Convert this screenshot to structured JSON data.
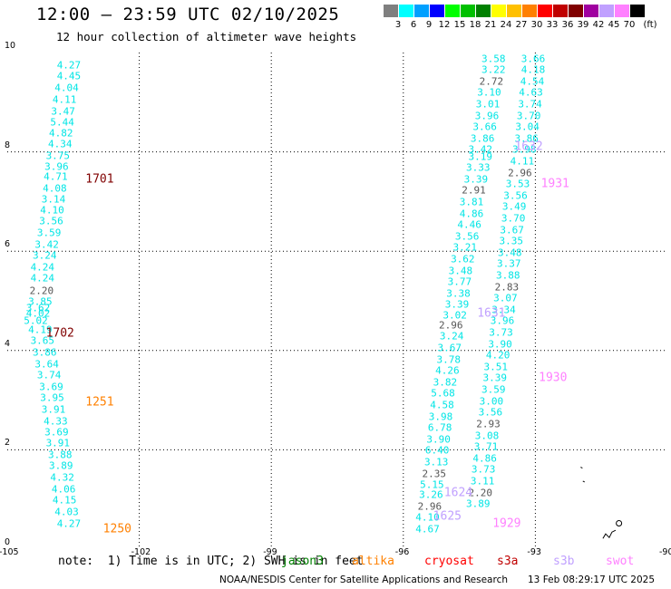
{
  "header": {
    "title": "12:00 — 23:59 UTC 02/10/2025",
    "subtitle": "12 hour collection of altimeter wave heights"
  },
  "colorbar": {
    "unit": "(ft)",
    "segments": [
      {
        "color": "#7f7f7f",
        "label": "3"
      },
      {
        "color": "#00ffff",
        "label": "6"
      },
      {
        "color": "#00a0ff",
        "label": "9"
      },
      {
        "color": "#0000ff",
        "label": "12"
      },
      {
        "color": "#00ff00",
        "label": "15"
      },
      {
        "color": "#00c000",
        "label": "18"
      },
      {
        "color": "#008000",
        "label": "21"
      },
      {
        "color": "#ffff00",
        "label": "24"
      },
      {
        "color": "#ffc000",
        "label": "27"
      },
      {
        "color": "#ff8000",
        "label": "30"
      },
      {
        "color": "#ff0000",
        "label": "33"
      },
      {
        "color": "#c00000",
        "label": "36"
      },
      {
        "color": "#800000",
        "label": "39"
      },
      {
        "color": "#a000a0",
        "label": "42"
      },
      {
        "color": "#c0a0ff",
        "label": "45"
      },
      {
        "color": "#ff80ff",
        "label": "70"
      },
      {
        "color": "#000000",
        "label": ""
      }
    ]
  },
  "map": {
    "lon_range": [
      -105,
      -90
    ],
    "lat_range": [
      0,
      10
    ],
    "lon_ticks": [
      "-105",
      "-102",
      "-99",
      "-96",
      "-93",
      "-90"
    ],
    "lat_ticks": [
      "0",
      "2",
      "4",
      "6",
      "8",
      "10"
    ],
    "tracks": [
      {
        "name": "track-a",
        "color": "#00e5e5",
        "points": [
          [
            -103.6,
            9.75,
            "4.27"
          ],
          [
            -103.6,
            9.52,
            "4.45"
          ],
          [
            -103.65,
            9.28,
            "4.04"
          ],
          [
            -103.7,
            9.05,
            "4.11"
          ],
          [
            -103.73,
            8.82,
            "3.47"
          ],
          [
            -103.75,
            8.6,
            "5.44"
          ],
          [
            -103.78,
            8.37,
            "4.82"
          ],
          [
            -103.8,
            8.15,
            "4.34"
          ],
          [
            -103.85,
            7.92,
            "3.75"
          ],
          [
            -103.88,
            7.7,
            "3.96"
          ],
          [
            -103.9,
            7.5,
            "4.71"
          ],
          [
            -103.92,
            7.27,
            "4.08"
          ],
          [
            -103.95,
            7.05,
            "3.14"
          ],
          [
            -103.98,
            6.82,
            "4.10"
          ],
          [
            -104.0,
            6.6,
            "3.56"
          ],
          [
            -104.05,
            6.37,
            "3.59"
          ],
          [
            -104.1,
            6.14,
            "3.42"
          ],
          [
            -104.15,
            5.91,
            "3.24"
          ],
          [
            -104.2,
            5.68,
            "4.24"
          ],
          [
            -104.2,
            5.45,
            "4.24"
          ],
          [
            -104.22,
            5.2,
            "2.20"
          ],
          [
            -104.25,
            4.98,
            "3.85"
          ],
          [
            -104.3,
            4.86,
            "3.62"
          ],
          [
            -104.3,
            4.74,
            "4.02"
          ],
          [
            -104.35,
            4.6,
            "5.02"
          ],
          [
            -104.25,
            4.42,
            "4.19"
          ],
          [
            -104.2,
            4.19,
            "3.65"
          ],
          [
            -104.15,
            3.96,
            "3.86"
          ],
          [
            -104.1,
            3.73,
            "3.64"
          ],
          [
            -104.05,
            3.5,
            "3.74"
          ],
          [
            -104.0,
            3.27,
            "3.69"
          ],
          [
            -103.98,
            3.04,
            "3.95"
          ],
          [
            -103.95,
            2.81,
            "3.91"
          ],
          [
            -103.9,
            2.58,
            "4.33"
          ],
          [
            -103.88,
            2.36,
            "3.69"
          ],
          [
            -103.85,
            2.13,
            "3.91"
          ],
          [
            -103.8,
            1.9,
            "3.88"
          ],
          [
            -103.78,
            1.67,
            "3.89"
          ],
          [
            -103.75,
            1.44,
            "4.32"
          ],
          [
            -103.72,
            1.21,
            "4.06"
          ],
          [
            -103.7,
            0.98,
            "4.15"
          ],
          [
            -103.65,
            0.75,
            "4.03"
          ],
          [
            -103.6,
            0.52,
            "4.27"
          ]
        ]
      },
      {
        "name": "track-b",
        "color": "#00e5e5",
        "points": [
          [
            -93.95,
            9.88,
            "3.58"
          ],
          [
            -93.95,
            9.65,
            "3.22"
          ],
          [
            -94.0,
            9.42,
            "2.72"
          ],
          [
            -94.05,
            9.19,
            "3.10"
          ],
          [
            -94.08,
            8.96,
            "3.01"
          ],
          [
            -94.1,
            8.73,
            "3.96"
          ],
          [
            -94.15,
            8.5,
            "3.66"
          ],
          [
            -94.2,
            8.27,
            "3.86"
          ],
          [
            -94.25,
            8.04,
            "3.42"
          ],
          [
            -94.25,
            7.9,
            "3.19"
          ],
          [
            -94.3,
            7.68,
            "3.33"
          ],
          [
            -94.35,
            7.45,
            "3.39"
          ],
          [
            -94.4,
            7.22,
            "2.91"
          ],
          [
            -94.45,
            6.99,
            "3.81"
          ],
          [
            -94.45,
            6.76,
            "4.86"
          ],
          [
            -94.5,
            6.53,
            "4.46"
          ],
          [
            -94.55,
            6.3,
            "3.56"
          ],
          [
            -94.6,
            6.07,
            "3.21"
          ],
          [
            -94.65,
            5.84,
            "3.62"
          ],
          [
            -94.7,
            5.61,
            "3.48"
          ],
          [
            -94.72,
            5.38,
            "3.77"
          ],
          [
            -94.75,
            5.15,
            "3.38"
          ],
          [
            -94.78,
            4.92,
            "3.39"
          ],
          [
            -94.83,
            4.7,
            "3.02"
          ],
          [
            -94.92,
            4.5,
            "2.96"
          ],
          [
            -94.9,
            4.28,
            "3.24"
          ],
          [
            -94.95,
            4.05,
            "3.67"
          ],
          [
            -94.97,
            3.82,
            "3.78"
          ],
          [
            -95.0,
            3.59,
            "4.26"
          ],
          [
            -95.05,
            3.36,
            "3.82"
          ],
          [
            -95.1,
            3.13,
            "5.68"
          ],
          [
            -95.12,
            2.9,
            "4.58"
          ],
          [
            -95.15,
            2.67,
            "3.98"
          ],
          [
            -95.17,
            2.44,
            "6.78"
          ],
          [
            -95.2,
            2.21,
            "3.90"
          ],
          [
            -95.23,
            1.98,
            "6.40"
          ],
          [
            -95.25,
            1.75,
            "3.13"
          ],
          [
            -95.3,
            1.52,
            "2.35"
          ],
          [
            -95.35,
            1.29,
            "5.15"
          ],
          [
            -95.37,
            1.09,
            "3.26"
          ],
          [
            -95.4,
            0.86,
            "2.96"
          ],
          [
            -95.45,
            0.63,
            "4.10"
          ],
          [
            -95.45,
            0.4,
            "4.67"
          ]
        ]
      },
      {
        "name": "track-c",
        "color": "#00e5e5",
        "points": [
          [
            -93.05,
            9.88,
            "3.66"
          ],
          [
            -93.05,
            9.65,
            "4.18"
          ],
          [
            -93.07,
            9.42,
            "4.54"
          ],
          [
            -93.1,
            9.19,
            "4.63"
          ],
          [
            -93.12,
            8.96,
            "3.74"
          ],
          [
            -93.15,
            8.73,
            "3.70"
          ],
          [
            -93.18,
            8.5,
            "3.04"
          ],
          [
            -93.2,
            8.27,
            "3.86"
          ],
          [
            -93.25,
            8.04,
            "3.98"
          ],
          [
            -93.3,
            7.81,
            "4.11"
          ],
          [
            -93.35,
            7.58,
            "2.96"
          ],
          [
            -93.4,
            7.35,
            "3.53"
          ],
          [
            -93.45,
            7.12,
            "3.56"
          ],
          [
            -93.48,
            6.89,
            "3.49"
          ],
          [
            -93.5,
            6.66,
            "3.70"
          ],
          [
            -93.53,
            6.43,
            "3.67"
          ],
          [
            -93.55,
            6.2,
            "3.35"
          ],
          [
            -93.58,
            5.97,
            "3.48"
          ],
          [
            -93.6,
            5.74,
            "3.37"
          ],
          [
            -93.62,
            5.51,
            "3.88"
          ],
          [
            -93.65,
            5.28,
            "2.83"
          ],
          [
            -93.68,
            5.05,
            "3.07"
          ],
          [
            -93.72,
            4.82,
            "3.34"
          ],
          [
            -93.75,
            4.59,
            "3.96"
          ],
          [
            -93.78,
            4.36,
            "3.73"
          ],
          [
            -93.8,
            4.13,
            "3.90"
          ],
          [
            -93.85,
            3.9,
            "4.20"
          ],
          [
            -93.9,
            3.67,
            "3.51"
          ],
          [
            -93.92,
            3.44,
            "3.39"
          ],
          [
            -93.95,
            3.21,
            "3.59"
          ],
          [
            -94.0,
            2.98,
            "3.00"
          ],
          [
            -94.02,
            2.75,
            "3.56"
          ],
          [
            -94.07,
            2.52,
            "2.93"
          ],
          [
            -94.1,
            2.29,
            "3.08"
          ],
          [
            -94.12,
            2.06,
            "3.71"
          ],
          [
            -94.15,
            1.83,
            "4.86"
          ],
          [
            -94.18,
            1.6,
            "3.73"
          ],
          [
            -94.2,
            1.37,
            "3.11"
          ],
          [
            -94.25,
            1.14,
            "2.20"
          ],
          [
            -94.3,
            0.91,
            "3.89"
          ]
        ]
      }
    ],
    "time_labels": [
      {
        "text": "1701",
        "lon": -102.9,
        "lat": 7.45,
        "color": "#800000"
      },
      {
        "text": "1702",
        "lon": -103.8,
        "lat": 4.35,
        "color": "#800000"
      },
      {
        "text": "1251",
        "lon": -102.9,
        "lat": 2.95,
        "color": "#ff8000"
      },
      {
        "text": "1250",
        "lon": -102.5,
        "lat": 0.4,
        "color": "#ff8000"
      },
      {
        "text": "1931",
        "lon": -92.55,
        "lat": 7.35,
        "color": "#ff80ff"
      },
      {
        "text": "1930",
        "lon": -92.6,
        "lat": 3.44,
        "color": "#ff80ff"
      },
      {
        "text": "1929",
        "lon": -93.65,
        "lat": 0.52,
        "color": "#ff80ff"
      },
      {
        "text": "1632",
        "lon": -93.15,
        "lat": 8.1,
        "color": "#c0a0ff"
      },
      {
        "text": "1631",
        "lon": -94.0,
        "lat": 4.74,
        "color": "#c0a0ff"
      },
      {
        "text": "1624",
        "lon": -94.75,
        "lat": 1.14,
        "color": "#c0a0ff"
      },
      {
        "text": "1625",
        "lon": -95.0,
        "lat": 0.65,
        "color": "#c0a0ff"
      }
    ],
    "islands": [
      {
        "name": "island-fragment",
        "lon": -91.95,
        "lat": 1.65
      },
      {
        "name": "island-fragment",
        "lon": -91.9,
        "lat": 1.37
      },
      {
        "name": "island-fragment",
        "lon": -91.1,
        "lat": 0.52
      },
      {
        "name": "island-fragment",
        "lon": -91.3,
        "lat": 0.27
      }
    ]
  },
  "footer": {
    "note": "note:  1) Time is in UTC; 2) SWH is in feet",
    "legend": [
      {
        "label": "jason3",
        "color": "#008000"
      },
      {
        "label": "altika",
        "color": "#ff8000"
      },
      {
        "label": "cryosat",
        "color": "#ff0000"
      },
      {
        "label": "s3a",
        "color": "#c00000"
      },
      {
        "label": "s3b",
        "color": "#c0a0ff"
      },
      {
        "label": "swot",
        "color": "#ff80ff"
      }
    ],
    "credit": "NOAA/NESDIS Center for Satellite Applications and Research",
    "timestamp": "13 Feb 08:29:17 UTC 2025"
  }
}
